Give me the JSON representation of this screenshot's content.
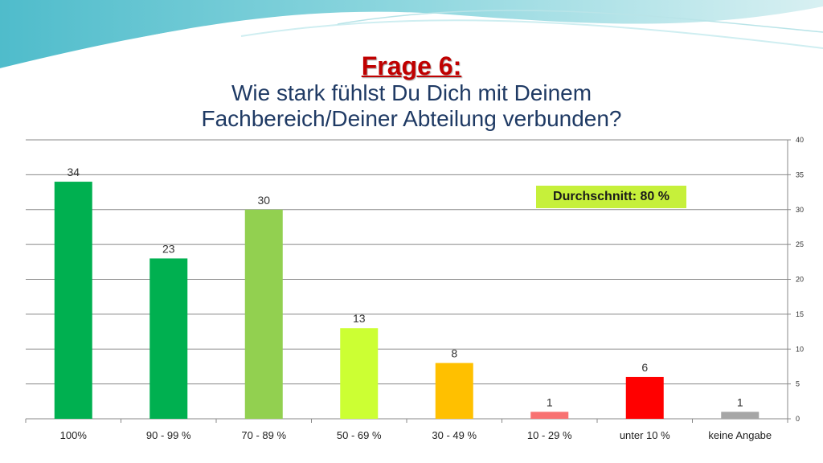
{
  "slide": {
    "title": "Frage 6:",
    "subtitle_line1": "Wie stark fühlst Du Dich mit Deinem",
    "subtitle_line2": "Fachbereich/Deiner Abteilung verbunden?",
    "average_label": "Durchschnitt: 80 %"
  },
  "colors": {
    "title": "#c00000",
    "subtitle": "#1f3a64",
    "average_badge": "#c6f03a",
    "wave_top": "#5ec3d0"
  },
  "chart_data": {
    "type": "bar",
    "title": "",
    "xlabel": "",
    "ylabel": "",
    "ylim": [
      0,
      40
    ],
    "yticks": [
      0,
      5,
      10,
      15,
      20,
      25,
      30,
      35,
      40
    ],
    "y_axis_side": "right",
    "grid": true,
    "legend": "none",
    "categories": [
      "100%",
      "90 - 99 %",
      "70 - 89 %",
      "50 - 69 %",
      "30 - 49 %",
      "10 - 29 %",
      "unter 10 %",
      "keine Angabe"
    ],
    "values": [
      34,
      23,
      30,
      13,
      8,
      1,
      6,
      1
    ],
    "bar_colors": [
      "#00b050",
      "#00b050",
      "#92d050",
      "#ccff33",
      "#ffc000",
      "#f87272",
      "#ff0000",
      "#a6a6a6"
    ]
  }
}
